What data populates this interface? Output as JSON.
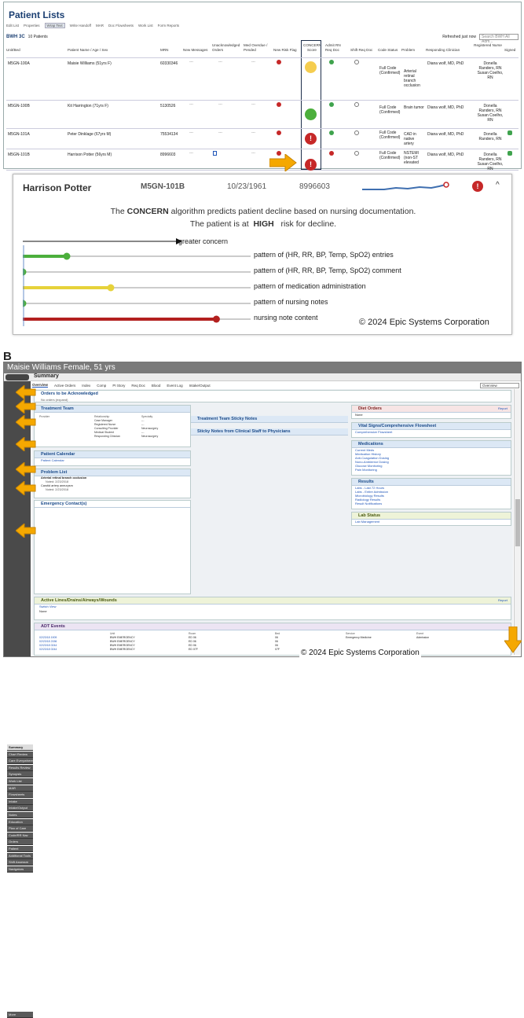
{
  "panel_a": {
    "label": "A",
    "title": "Patient Lists",
    "toolbar": [
      "Edit List",
      "Properties",
      "Wrap Text",
      "Write Handoff",
      "MAR",
      "Doc Flowsheets",
      "Work List",
      "Form Reports"
    ],
    "unit": "BWH 3C",
    "patient_count": "10 Patients",
    "refreshed": "Refreshed just now",
    "search_placeholder": "Search BWH All Adm...",
    "columns": [
      "Unit/Bed",
      "Patient Name / Age / Sex",
      "MRN",
      "New Messages",
      "Unacknowledged Orders",
      "Med Overdue / Pended",
      "New Risk Flag",
      "CONCERN Score",
      "Admit RN Req Doc",
      "Shift Req Doc",
      "Code Status",
      "Problem",
      "Responding Clinician",
      "Registered Nurse",
      "Signed"
    ],
    "rows": [
      {
        "bed": "M5GN-100A",
        "name": "Maisie Williams (51yrs F)",
        "mrn": "60330346",
        "msg": "---",
        "orders": "---",
        "med": "---",
        "concern": "yellow",
        "code": "Full Code (Confirmed)",
        "problem": "Arterial retinal branch occlusion",
        "clinician": "Diana wolf, MD, PhD",
        "nurse": "Donella Randers, RN Susan Coelho, RN"
      },
      {
        "bed": "M5GN-100B",
        "name": "Kit Harrington (71yrs F)",
        "mrn": "5130526",
        "msg": "---",
        "orders": "---",
        "med": "---",
        "concern": "green",
        "code": "Full Code (Confirmed)",
        "problem": "Brain tumor",
        "clinician": "Diana wolf, MD, PhD",
        "nurse": "Donella Randers, RN Susan Coelho, RN"
      },
      {
        "bed": "M5GN-101A",
        "name": "Peter Dinklage (67yrs M)",
        "mrn": "75534134",
        "msg": "---",
        "orders": "---",
        "med": "---",
        "concern": "red",
        "code": "Full Code (Confirmed)",
        "problem": "CAD in native artery",
        "clinician": "Diana wolf, MD, PhD",
        "nurse": "Donella Randers, RN"
      },
      {
        "bed": "M5GN-101B",
        "name": "Harrison Potter (56yrs M)",
        "mrn": "8996603",
        "msg": "---",
        "orders": "",
        "med": "---",
        "concern": "red",
        "code": "Full Code (Confirmed)",
        "problem": "NSTEMI (non-ST elevated",
        "clinician": "Diana wolf, MD, PhD",
        "nurse": "Donella Randers, RN Susan Coelho, RN"
      }
    ]
  },
  "card": {
    "name": "Harrison Potter",
    "bed": "M5GN-101B",
    "dob": "10/23/1961",
    "mrn": "8996603",
    "desc_pre": "The ",
    "desc_bold": "CONCERN",
    "desc_post": " algorithm predicts patient decline based on nursing documentation.",
    "risk_pre": "The patient is at ",
    "risk_level": "HIGH",
    "risk_post": " risk for decline.",
    "arrow_label": "greater concern",
    "patterns": [
      {
        "label": "pattern of (HR, RR, BP, Temp, SpO2) entries",
        "color": "#4caf3c",
        "level": 0.2
      },
      {
        "label": "pattern of (HR, RR, BP, Temp, SpO2) comment",
        "color": "#4caf3c",
        "level": 0.0
      },
      {
        "label": "pattern of medication administration",
        "color": "#e6d23a",
        "level": 0.4
      },
      {
        "label": "pattern of nursing notes",
        "color": "#4caf3c",
        "level": 0.0
      },
      {
        "label": "nursing note content",
        "color": "#b3201f",
        "level": 0.88
      }
    ],
    "copyright": "© 2024 Epic Systems Corporation"
  },
  "panel_b": {
    "label": "B",
    "header": "Maisie Williams Female, 51 yrs",
    "activity": "Summary",
    "tabs": [
      "Overview",
      "Active Orders",
      "Index",
      "Comp",
      "PI Story",
      "Req Doc",
      "Blood",
      "Event Log",
      "Intake/Output"
    ],
    "tab_dropdown": "Overview",
    "nav": [
      "Summary",
      "Chart Review",
      "Care Everywhere",
      "Results Review",
      "Synopsis",
      "Work List",
      "MAR",
      "Flowsheets",
      "Intake",
      "Intake/Output",
      "Notes",
      "Education",
      "Plan of Care",
      "Code/RR Nav",
      "Orders",
      "Patient Instructions",
      "Additional Tools",
      "Shift Assessm",
      "Navigators"
    ],
    "nav_more": "More",
    "orders_title": "Orders to be Acknowledged",
    "orders_sub": "No orders (expand)",
    "treatment_team": "Treatment Team",
    "tt_cols": [
      "Provider",
      "Relationship",
      "Specialty"
    ],
    "tt_rows": [
      [
        "",
        "Case Manager",
        "---"
      ],
      [
        "",
        "Registered Nurse",
        "---"
      ],
      [
        "",
        "Consulting Provider",
        "Neurosurgery"
      ],
      [
        "",
        "Medical Student",
        "---"
      ],
      [
        "",
        "Responding Clinician",
        "Neurosurgery"
      ]
    ],
    "sticky_team": "Treatment Team Sticky Notes",
    "sticky_clin": "Sticky Notes from Clinical Staff to Physicians",
    "calendar": "Patient Calendar",
    "calendar_link": "Patient Calendar",
    "problem_list": "Problem List",
    "problems": [
      {
        "name": "Arterial retinal branch occlusion",
        "noted": "Noted: 2/23/2018"
      },
      {
        "name": "Carotid artery aneurysm",
        "noted": "Noted: 2/23/2018"
      }
    ],
    "emergency": "Emergency Contact(s)",
    "diet": "Diet Orders",
    "diet_value": "None",
    "report": "Report",
    "vitals": "Vital Signs/Comprehensive Flowsheet",
    "vitals_link": "Comprehensive Flowsheet",
    "meds": "Medications",
    "med_links": [
      "Current Meds",
      "Medication History",
      "Anti-Coagulation Dosing",
      "Nono-Ambientor Dosing",
      "Glucose Monitoring",
      "Pain Monitoring"
    ],
    "results": "Results",
    "result_links": [
      "Labs - Last 72 Hours",
      "Labs - Entire Admission",
      "Microbiology Results",
      "Radiology Results",
      "Result Notifications"
    ],
    "lab_status": "Lab Status",
    "lab_link": "Lab Management",
    "lines": "Active Lines/Drains/Airways/Wounds",
    "lines_link": "Switch View",
    "lines_value": "None",
    "adt": "ADT Events",
    "adt_cols": [
      "",
      "Unit",
      "Room",
      "Bed",
      "Service",
      "Event"
    ],
    "adt_rows": [
      [
        "02/23/18 1909",
        "BWH EMERGENCY",
        "ED 06",
        "06",
        "Emergency Medicine",
        "Admission"
      ],
      [
        "02/23/18 2156",
        "BWH EMERGENCY",
        "ED 06",
        "06",
        "",
        ""
      ],
      [
        "02/23/18 0244",
        "BWH EMERGENCY",
        "ED 06",
        "06",
        "",
        ""
      ],
      [
        "02/23/18 0244",
        "BWH EMERGENCY",
        "ED 07F",
        "07F",
        "",
        ""
      ]
    ],
    "copyright": "© 2024 Epic Systems Corporation"
  }
}
